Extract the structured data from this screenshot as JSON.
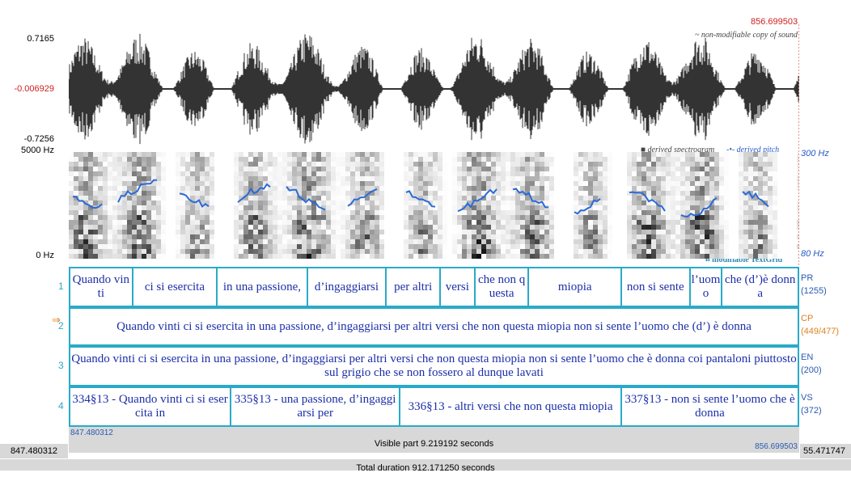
{
  "header": {
    "end_time": "856.699503",
    "sound_note": "~ non-modifiable copy of sound"
  },
  "waveform": {
    "max": "0.7165",
    "cursor": "-0.006929",
    "min": "-0.7256"
  },
  "spectrogram": {
    "top": "5000 Hz",
    "bottom": "0 Hz",
    "legend_spectrogram": "derived spectrogram",
    "legend_pitch": "derived pitch",
    "pitch_top": "300 Hz",
    "pitch_bottom": "80 Hz"
  },
  "textgrid": {
    "label": "modifiable TextGrid",
    "tiers": [
      {
        "number": "1",
        "name": "PR",
        "count": "(1255)",
        "intervals": [
          "Quando vinti",
          "ci si esercita",
          "in una passione,",
          "d’ingaggiarsi",
          "per altri",
          "versi",
          "che non questa",
          "miopia",
          "non si sente",
          "l’uomo",
          "che (d’)è donna"
        ]
      },
      {
        "number": "2",
        "name": "CP",
        "count": "(449/477)",
        "intervals": [
          "Quando vinti ci si esercita in una passione, d’ingaggiarsi per altri versi che non questa miopia non si sente l’uomo che (d’) è donna"
        ]
      },
      {
        "number": "3",
        "name": "EN",
        "count": "(200)",
        "intervals": [
          "Quando vinti ci si esercita in una passione, d’ingaggiarsi per altri versi che non questa miopia non si sente l’uomo che è donna coi pantaloni piuttosto sul grigio che se non fossero al dunque lavati"
        ]
      },
      {
        "number": "4",
        "name": "VS",
        "count": "(372)",
        "intervals": [
          "334§13 - Quando vinti ci si esercita in",
          "335§13 - una passione, d’ingaggiarsi per",
          "336§13 - altri versi che non questa miopia",
          "337§13 - non si sente l’uomo che è donna"
        ]
      }
    ]
  },
  "footer": {
    "visible_start": "847.480312",
    "visible_end": "856.699503",
    "visible_part": "Visible part 9.219192 seconds",
    "left_time": "847.480312",
    "right_time": "55.471747",
    "total_duration": "Total duration 912.171250 seconds"
  }
}
